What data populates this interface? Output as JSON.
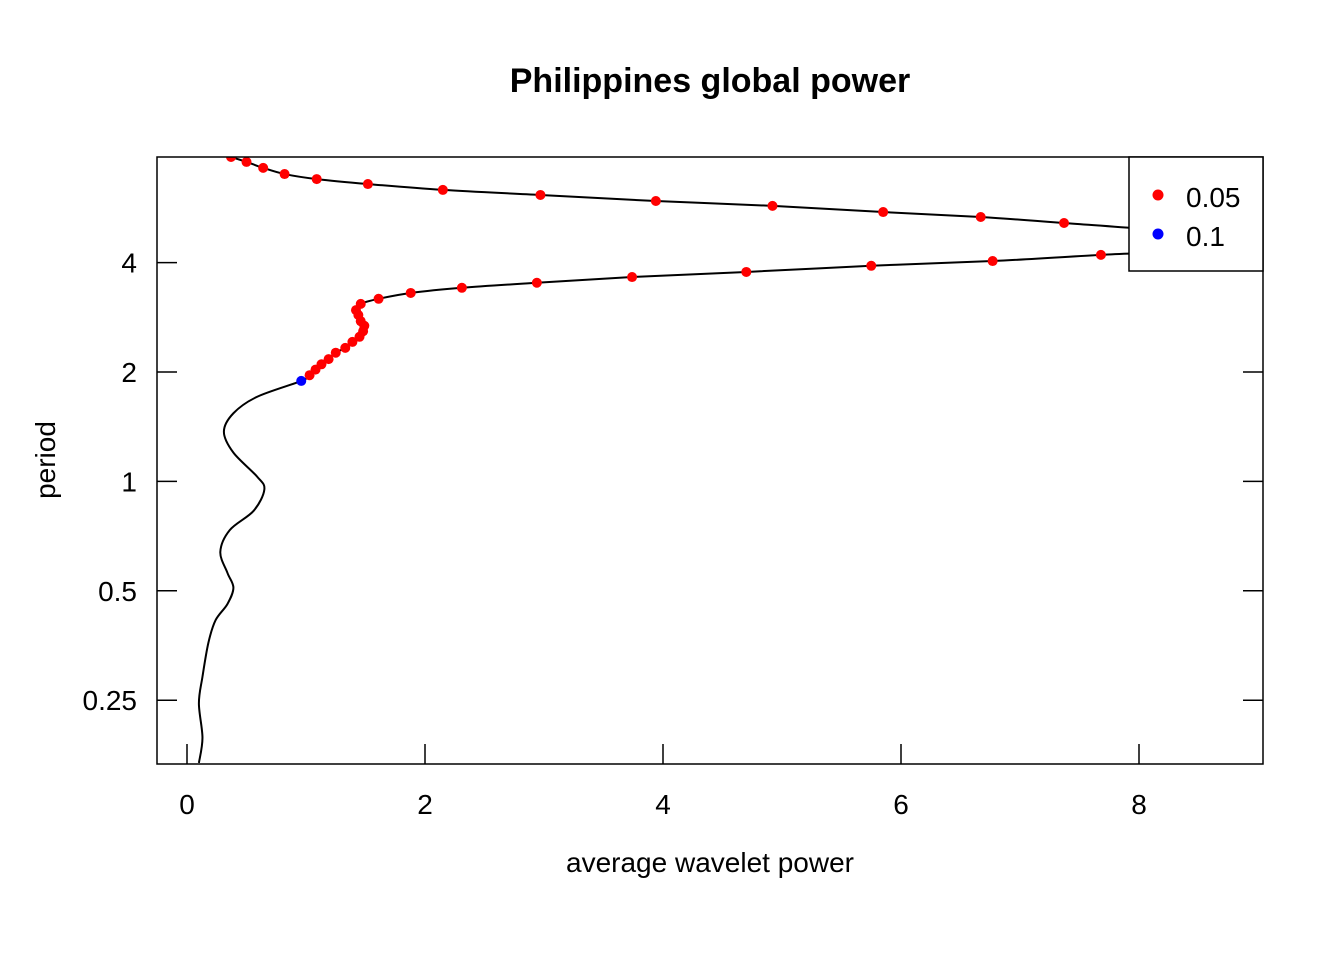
{
  "chart_data": {
    "type": "line",
    "title": "Philippines global power",
    "xlabel": "average wavelet power",
    "ylabel": "period",
    "xlim": [
      -0.25,
      9.04
    ],
    "ylim_period_log2": [
      0.167,
      7.8
    ],
    "y_scale": "log2",
    "x_ticks": [
      0,
      2,
      4,
      6,
      8
    ],
    "x_tick_labels": [
      "0",
      "2",
      "4",
      "6",
      "8"
    ],
    "y_ticks": [
      4,
      2,
      1,
      0.5,
      0.25
    ],
    "y_tick_labels": [
      "4",
      "2",
      "1",
      "0.5",
      "0.25"
    ],
    "grid": false,
    "legend": {
      "placement": "top-right",
      "entries": [
        {
          "label": "0.05",
          "color": "#ff0000"
        },
        {
          "label": "0.1",
          "color": "#0000ff"
        }
      ]
    },
    "line": {
      "color": "#000000",
      "points": [
        [
          0.37,
          7.81
        ],
        [
          0.5,
          7.57
        ],
        [
          0.64,
          7.29
        ],
        [
          0.82,
          7.01
        ],
        [
          1.09,
          6.79
        ],
        [
          1.52,
          6.58
        ],
        [
          2.15,
          6.34
        ],
        [
          2.97,
          6.14
        ],
        [
          3.94,
          5.91
        ],
        [
          4.92,
          5.73
        ],
        [
          5.85,
          5.51
        ],
        [
          6.67,
          5.34
        ],
        [
          7.37,
          5.14
        ],
        [
          8.3,
          4.85
        ],
        [
          8.7,
          4.5
        ],
        [
          8.3,
          4.3
        ],
        [
          7.68,
          4.2
        ],
        [
          6.77,
          4.04
        ],
        [
          5.75,
          3.92
        ],
        [
          4.7,
          3.77
        ],
        [
          3.74,
          3.65
        ],
        [
          2.94,
          3.52
        ],
        [
          2.31,
          3.41
        ],
        [
          1.88,
          3.3
        ],
        [
          1.61,
          3.18
        ],
        [
          1.46,
          3.08
        ],
        [
          1.42,
          2.96
        ],
        [
          1.44,
          2.87
        ],
        [
          1.46,
          2.76
        ],
        [
          1.49,
          2.68
        ],
        [
          1.48,
          2.59
        ],
        [
          1.45,
          2.5
        ],
        [
          1.39,
          2.42
        ],
        [
          1.33,
          2.33
        ],
        [
          1.25,
          2.26
        ],
        [
          1.19,
          2.17
        ],
        [
          1.13,
          2.1
        ],
        [
          1.08,
          2.03
        ],
        [
          1.03,
          1.96
        ],
        [
          0.96,
          1.89
        ],
        [
          0.59,
          1.71
        ],
        [
          0.39,
          1.54
        ],
        [
          0.31,
          1.37
        ],
        [
          0.39,
          1.2
        ],
        [
          0.59,
          1.03
        ],
        [
          0.65,
          0.95
        ],
        [
          0.56,
          0.83
        ],
        [
          0.36,
          0.735
        ],
        [
          0.28,
          0.64
        ],
        [
          0.34,
          0.56
        ],
        [
          0.39,
          0.51
        ],
        [
          0.34,
          0.46
        ],
        [
          0.24,
          0.415
        ],
        [
          0.18,
          0.36
        ],
        [
          0.13,
          0.29
        ],
        [
          0.1,
          0.245
        ],
        [
          0.13,
          0.197
        ],
        [
          0.1,
          0.168
        ]
      ]
    },
    "significant_005": [
      [
        0.37,
        7.81
      ],
      [
        0.5,
        7.57
      ],
      [
        0.64,
        7.29
      ],
      [
        0.82,
        7.01
      ],
      [
        1.09,
        6.79
      ],
      [
        1.52,
        6.58
      ],
      [
        2.15,
        6.34
      ],
      [
        2.97,
        6.14
      ],
      [
        3.94,
        5.91
      ],
      [
        4.92,
        5.73
      ],
      [
        5.85,
        5.51
      ],
      [
        6.67,
        5.34
      ],
      [
        7.37,
        5.14
      ],
      [
        7.68,
        4.2
      ],
      [
        6.77,
        4.04
      ],
      [
        5.75,
        3.92
      ],
      [
        4.7,
        3.77
      ],
      [
        3.74,
        3.65
      ],
      [
        2.94,
        3.52
      ],
      [
        2.31,
        3.41
      ],
      [
        1.88,
        3.3
      ],
      [
        1.61,
        3.18
      ],
      [
        1.46,
        3.08
      ],
      [
        1.42,
        2.96
      ],
      [
        1.44,
        2.87
      ],
      [
        1.46,
        2.76
      ],
      [
        1.49,
        2.68
      ],
      [
        1.48,
        2.59
      ],
      [
        1.45,
        2.5
      ],
      [
        1.39,
        2.42
      ],
      [
        1.33,
        2.33
      ],
      [
        1.25,
        2.26
      ],
      [
        1.19,
        2.17
      ],
      [
        1.13,
        2.1
      ],
      [
        1.08,
        2.03
      ],
      [
        1.03,
        1.96
      ]
    ],
    "significant_01": [
      [
        0.96,
        1.89
      ]
    ]
  }
}
